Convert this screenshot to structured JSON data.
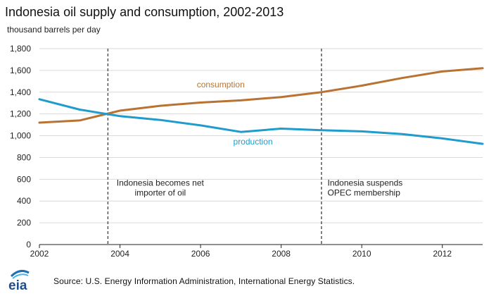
{
  "header": {
    "title": "Indonesia oil supply and consumption, 2002-2013",
    "units": "thousand barrels per day"
  },
  "footer": {
    "logo_text": "eia",
    "source": "Source:  U.S. Energy Information  Administration, International  Energy Statistics."
  },
  "colors": {
    "consumption": "#b87333",
    "production": "#1f9ccc",
    "grid": "#d9d9d9",
    "annotation_line": "#555555"
  },
  "chart_data": {
    "type": "line",
    "x": [
      2002,
      2003,
      2004,
      2005,
      2006,
      2007,
      2008,
      2009,
      2010,
      2011,
      2012,
      2013
    ],
    "xlim": [
      2002,
      2013
    ],
    "ylim": [
      0,
      1800
    ],
    "xticks": [
      2002,
      2004,
      2006,
      2008,
      2010,
      2012
    ],
    "xtick_labels": [
      "2002",
      "2004",
      "2006",
      "2008",
      "2010",
      "2012"
    ],
    "yticks": [
      0,
      200,
      400,
      600,
      800,
      1000,
      1200,
      1400,
      1600,
      1800
    ],
    "ytick_labels": [
      "0",
      "200",
      "400",
      "600",
      "800",
      "1,000",
      "1,200",
      "1,400",
      "1,600",
      "1,800"
    ],
    "grid": true,
    "series": [
      {
        "name": "consumption",
        "values": [
          1120,
          1140,
          1230,
          1275,
          1305,
          1325,
          1355,
          1400,
          1460,
          1530,
          1590,
          1620
        ]
      },
      {
        "name": "production",
        "values": [
          1335,
          1240,
          1180,
          1145,
          1095,
          1035,
          1065,
          1050,
          1040,
          1015,
          975,
          925
        ]
      }
    ],
    "series_label_positions": [
      {
        "name": "consumption",
        "x": 2006.5,
        "y": 1445
      },
      {
        "name": "production",
        "x": 2007.3,
        "y": 920
      }
    ],
    "annotations": [
      {
        "x": 2003.7,
        "lines": [
          "Indonesia becomes net",
          "importer of oil"
        ],
        "y": 540,
        "align": "center",
        "text_x": 2005.0
      },
      {
        "x": 2009.0,
        "lines": [
          "Indonesia suspends",
          "OPEC membership"
        ],
        "y": 540,
        "align": "left",
        "text_x": 2009.15
      }
    ]
  }
}
